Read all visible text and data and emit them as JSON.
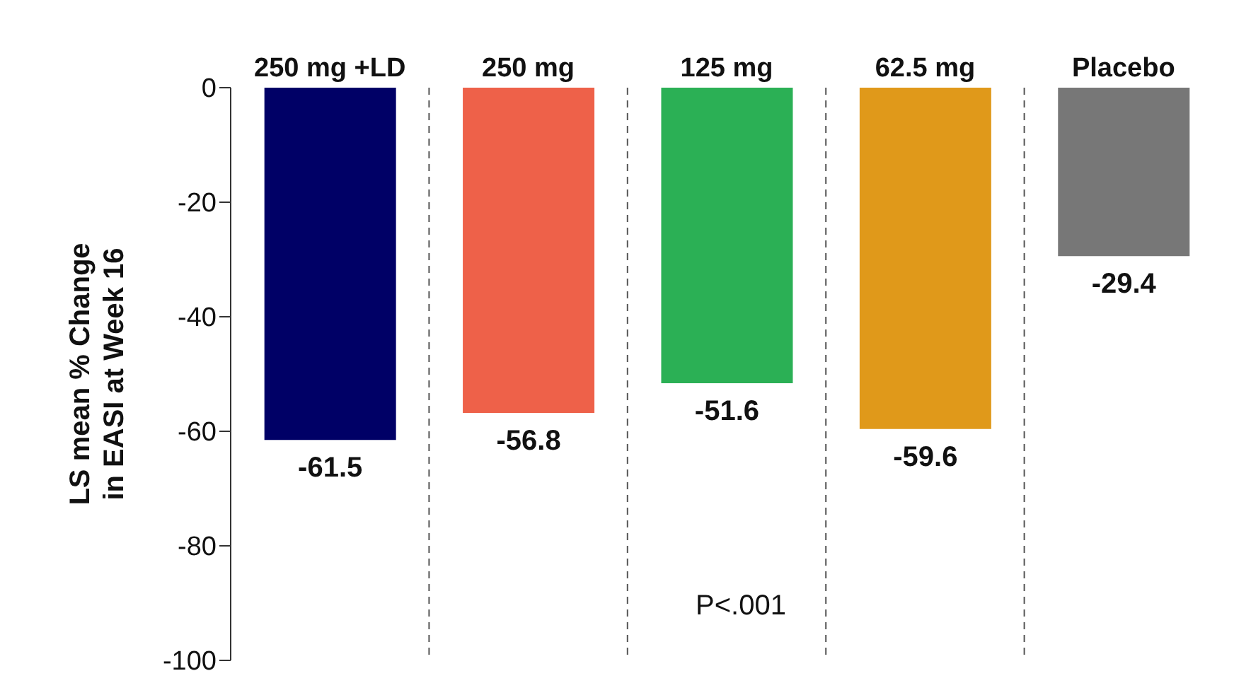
{
  "chart_data": {
    "type": "bar",
    "ylabel": "LS mean % Change in EASI at Week 16",
    "categories": [
      "250 mg +LD",
      "250 mg",
      "125 mg",
      "62.5 mg",
      "Placebo"
    ],
    "values": [
      -61.5,
      -56.8,
      -51.6,
      -59.6,
      -29.4
    ],
    "colors": [
      "#000066",
      "#ee6149",
      "#2bb055",
      "#e0991a",
      "#777777"
    ],
    "ylim": [
      -100,
      0
    ],
    "yticks": [
      0,
      -20,
      -40,
      -60,
      -80,
      -100
    ],
    "grid": "x",
    "data_labels": true,
    "annotations": [
      "P<.001"
    ]
  }
}
